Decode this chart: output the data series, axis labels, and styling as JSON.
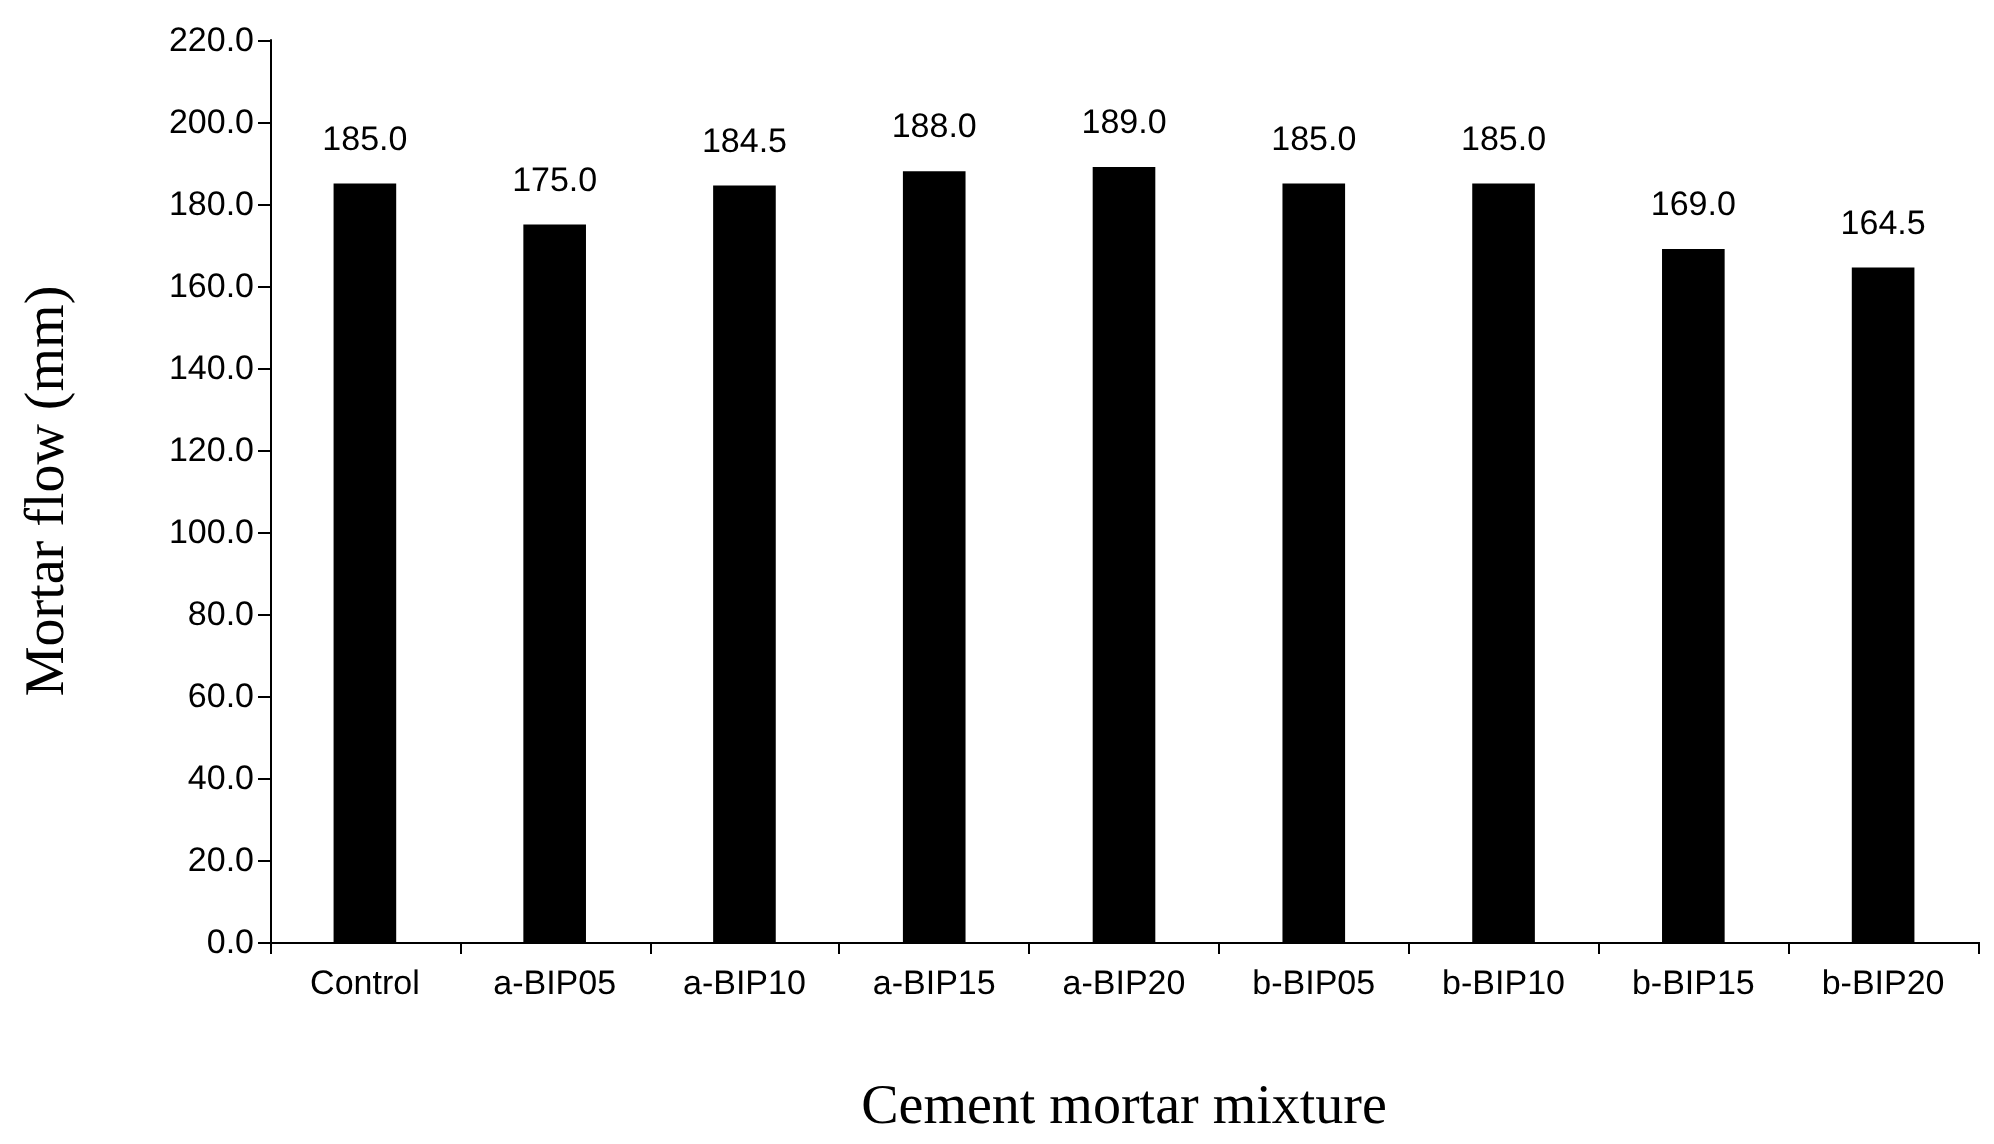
{
  "chart_data": {
    "type": "bar",
    "xlabel": "Cement mortar mixture",
    "ylabel": "Mortar flow (mm)",
    "categories": [
      "Control",
      "a-BIP05",
      "a-BIP10",
      "a-BIP15",
      "a-BIP20",
      "b-BIP05",
      "b-BIP10",
      "b-BIP15",
      "b-BIP20"
    ],
    "values": [
      185.0,
      175.0,
      184.5,
      188.0,
      189.0,
      185.0,
      185.0,
      169.0,
      164.5
    ],
    "value_labels": [
      "185.0",
      "175.0",
      "184.5",
      "188.0",
      "189.0",
      "185.0",
      "185.0",
      "169.0",
      "164.5"
    ],
    "color": "#000000",
    "ylim": [
      0,
      220
    ],
    "yticks": [
      {
        "value": 0,
        "label": "0.0"
      },
      {
        "value": 20,
        "label": "20.0"
      },
      {
        "value": 40,
        "label": "40.0"
      },
      {
        "value": 60,
        "label": "60.0"
      },
      {
        "value": 80,
        "label": "80.0"
      },
      {
        "value": 100,
        "label": "100.0"
      },
      {
        "value": 120,
        "label": "120.0"
      },
      {
        "value": 140,
        "label": "140.0"
      },
      {
        "value": 160,
        "label": "160.0"
      },
      {
        "value": 180,
        "label": "180.0"
      },
      {
        "value": 200,
        "label": "200.0"
      },
      {
        "value": 220,
        "label": "220.0"
      }
    ],
    "grid": false
  }
}
